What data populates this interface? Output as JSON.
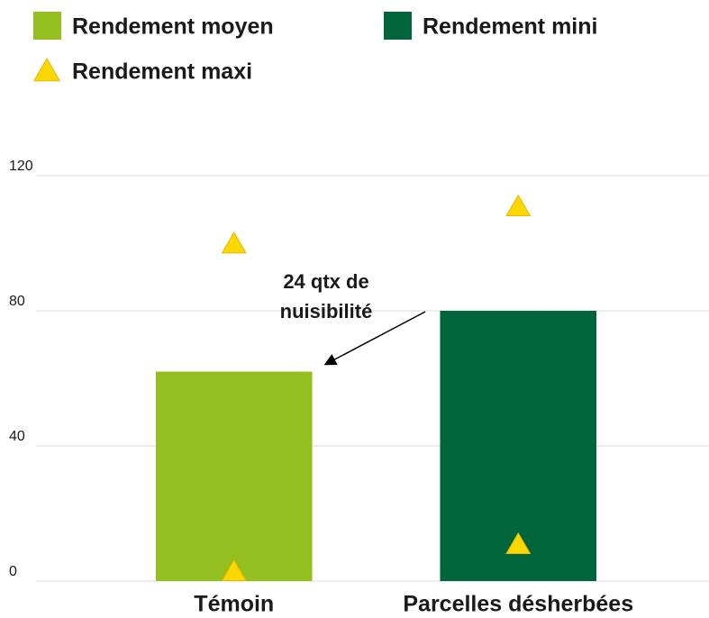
{
  "chart_data": {
    "type": "bar",
    "categories": [
      "Témoin",
      "Parcelles désherbées"
    ],
    "series": [
      {
        "name": "Rendement moyen",
        "color": "#93c01f",
        "kind": "bar",
        "values": [
          62,
          null
        ]
      },
      {
        "name": "Rendement mini",
        "color": "#00653a",
        "kind": "bar",
        "values": [
          null,
          80
        ]
      },
      {
        "name": "Rendement maxi",
        "color": "#fed600",
        "kind": "triangle",
        "values": [
          100,
          111
        ]
      },
      {
        "color": "#fed600",
        "kind": "triangle",
        "values": [
          3,
          11
        ]
      }
    ],
    "annotation": {
      "lines": [
        "24 qtx de",
        "nuisibilité"
      ]
    },
    "ylim": [
      0,
      120
    ],
    "yticks": [
      0,
      40,
      80,
      120
    ],
    "grid": true
  }
}
